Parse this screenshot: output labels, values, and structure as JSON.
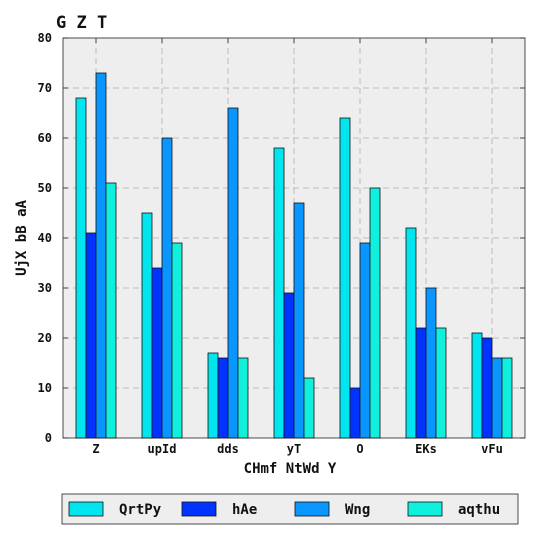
{
  "chart_data": {
    "type": "bar",
    "title": "G Z T",
    "xlabel": "CHmf NtWd  Y",
    "ylabel": "UjX  bB   aA",
    "categories": [
      "Z",
      "upId",
      "dds",
      "yT",
      "O",
      "EKs",
      "vFu"
    ],
    "ylim": [
      0,
      80
    ],
    "yticks": [
      "0",
      "10",
      "20",
      "30",
      "40",
      "50",
      "60",
      "70",
      "80"
    ],
    "grid": true,
    "legend_placement": "bottom, outside plot",
    "series": [
      {
        "name": "QrtPy",
        "color": "#00e5ee",
        "values": [
          68,
          45,
          17,
          58,
          64,
          42,
          21
        ]
      },
      {
        "name": "hAe",
        "color": "#0033ff",
        "values": [
          41,
          34,
          16,
          29,
          10,
          22,
          20
        ]
      },
      {
        "name": "Wng",
        "color": "#0a96ff",
        "values": [
          73,
          60,
          66,
          47,
          39,
          30,
          16
        ]
      },
      {
        "name": "aqthu",
        "color": "#10f0dc",
        "values": [
          51,
          39,
          16,
          12,
          50,
          22,
          16
        ]
      }
    ]
  }
}
